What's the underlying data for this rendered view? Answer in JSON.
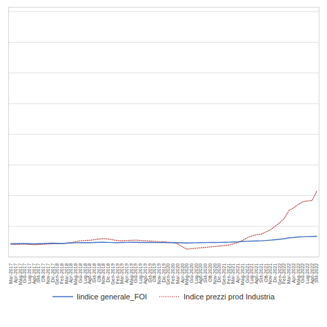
{
  "chart_data": {
    "type": "line",
    "categories": [
      "Mar-2017",
      "Apr-2017",
      "Mag-2017",
      "Giu-2017",
      "Lug-2017",
      "Ago-2017",
      "Set-2017",
      "Ott-2017",
      "Nov-2017",
      "Dic-2017",
      "Gen-2018",
      "Feb-2018",
      "Mar-2018",
      "Apr-2018",
      "Mag-2018",
      "Giu-2018",
      "Lug-2018",
      "Ago-2018",
      "Set-2018",
      "Ott-2018",
      "Nov-2018",
      "Dic-2018",
      "Gen-2019",
      "Feb-2019",
      "Mar-2019",
      "Apr-2019",
      "Mag-2019",
      "Giu-2019",
      "Lug-2019",
      "Ago-2019",
      "Set-2019",
      "Ott-2019",
      "Nov-2019",
      "Dic-2019",
      "Gen-2020",
      "Feb-2020",
      "Mar-2020",
      "Apr-2020",
      "Mag-2020",
      "Giu-2020",
      "Lug-2020",
      "Ago-2020",
      "Set-2020",
      "Ott-2020",
      "Nov-2020",
      "Dic-2020",
      "Gen-2021",
      "Feb-2021",
      "Mar-2021",
      "Apr-2021",
      "Mag-2021",
      "Giu-2021",
      "Lug-2021",
      "Ago-2021",
      "Set-2021",
      "Ott-2021",
      "Nov-2021",
      "Dic-2021",
      "Gen-2022",
      "Feb-2022",
      "Mar-2022",
      "Apr-2022",
      "Mag-2022",
      "Giu-2022",
      "Lug-2022",
      "Ago-2022",
      "Set-2022"
    ],
    "series": [
      {
        "name": "Iindice generale_FOI",
        "color": "#4472c4",
        "line_style": "solid",
        "values": [
          100.2,
          100.2,
          100.3,
          100.3,
          100.1,
          100.0,
          100.2,
          100.4,
          100.5,
          100.7,
          100.5,
          100.4,
          100.7,
          100.9,
          101.2,
          101.4,
          101.3,
          101.3,
          101.5,
          101.7,
          101.8,
          101.6,
          101.4,
          101.3,
          101.5,
          101.6,
          101.7,
          101.7,
          101.5,
          101.5,
          101.5,
          101.4,
          101.4,
          101.5,
          101.3,
          101.4,
          101.3,
          101.1,
          101.0,
          101.1,
          101.2,
          101.3,
          101.4,
          101.5,
          101.5,
          101.6,
          101.7,
          101.8,
          102.1,
          102.3,
          102.7,
          103.0,
          103.1,
          103.3,
          103.4,
          103.8,
          104.2,
          104.7,
          105.3,
          105.9,
          106.8,
          107.2,
          107.8,
          108.1,
          108.3,
          108.4,
          108.6
        ]
      },
      {
        "name": "Indice prezzi prod Industria",
        "color": "#c0504d",
        "line_style": "dotted",
        "values": [
          99.5,
          99.3,
          99.4,
          99.5,
          99.3,
          99.0,
          99.2,
          99.5,
          99.8,
          100.0,
          100.2,
          100.3,
          100.8,
          101.5,
          102.5,
          103.5,
          103.8,
          104.0,
          104.8,
          105.5,
          106.0,
          105.5,
          104.5,
          103.8,
          103.5,
          103.8,
          104.0,
          104.2,
          103.8,
          103.5,
          103.2,
          102.8,
          102.5,
          102.3,
          101.8,
          101.5,
          100.0,
          96.5,
          94.0,
          94.5,
          95.0,
          95.5,
          96.0,
          96.5,
          97.0,
          97.5,
          98.0,
          98.5,
          100.0,
          101.5,
          104.0,
          107.0,
          109.0,
          110.5,
          111.0,
          113.5,
          116.0,
          120.0,
          124.0,
          129.0,
          138.0,
          141.0,
          145.0,
          148.0,
          149.0,
          149.5,
          160.0
        ]
      }
    ],
    "ylim": [
      85,
      370
    ],
    "yticks": [
      85,
      120,
      155,
      190,
      225,
      260,
      295,
      330,
      365
    ],
    "grid": true,
    "legend": "bottom",
    "tick_labels": "x"
  }
}
